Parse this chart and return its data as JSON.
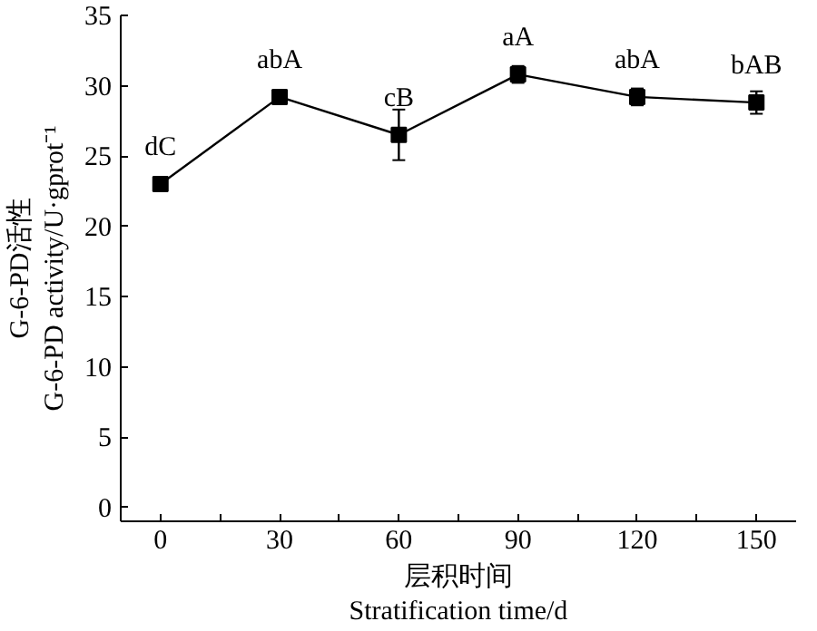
{
  "chart_data": {
    "type": "line",
    "xlabel": "层积时间\nStratification time/d",
    "ylabel": "G-6-PD活性\nG-6-PD activity/U·gprot⁻¹",
    "x": [
      0,
      30,
      60,
      90,
      120,
      150
    ],
    "series": [
      {
        "color": "#000000",
        "values": [
          23.0,
          29.2,
          26.5,
          30.8,
          29.2,
          28.8
        ],
        "errors": [
          0.3,
          0.4,
          1.8,
          0.6,
          0.6,
          0.8
        ]
      }
    ],
    "marker": "square",
    "line_style": "solid",
    "grid": false,
    "xlim": [
      -10,
      160
    ],
    "xticks": [
      0,
      {
        "value": 15,
        "label": null
      },
      30,
      {
        "value": 45,
        "label": null
      },
      60,
      {
        "value": 75,
        "label": null
      },
      90,
      {
        "value": 105,
        "label": null
      },
      120,
      {
        "value": 135,
        "label": null
      },
      150
    ],
    "ylim": [
      -1,
      35
    ],
    "yticks": [
      0,
      5,
      10,
      15,
      20,
      25,
      30,
      35
    ],
    "annotations": [
      {
        "text": "dC",
        "x": 0,
        "y": 23.0
      },
      {
        "text": "abA",
        "x": 30,
        "y": 29.2
      },
      {
        "text": "cB",
        "x": 60,
        "y": 26.5
      },
      {
        "text": "aA",
        "x": 90,
        "y": 30.8
      },
      {
        "text": "abA",
        "x": 120,
        "y": 29.2
      },
      {
        "text": "bAB",
        "x": 150,
        "y": 28.8
      }
    ]
  }
}
